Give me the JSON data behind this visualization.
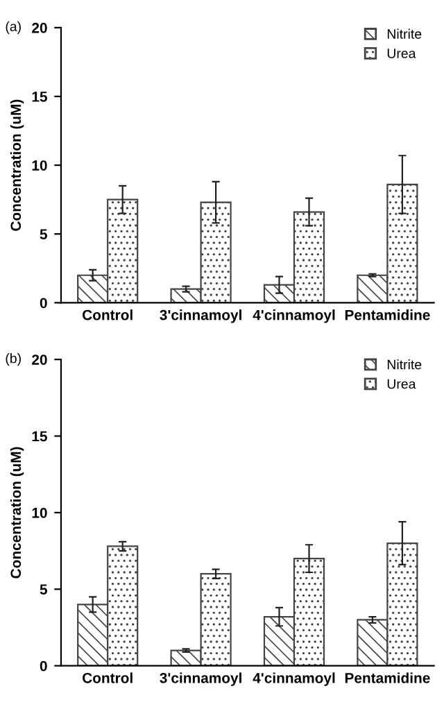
{
  "chart_data": [
    {
      "type": "bar",
      "annotations": [
        "(a)"
      ],
      "ylabel": "Concentration (uM)",
      "categories": [
        "Control",
        "3'cinnamoyl",
        "4'cinnamoyl",
        "Pentamidine"
      ],
      "series": [
        {
          "name": "Nitrite",
          "color": "#444444",
          "values": [
            2.0,
            1.0,
            1.3,
            2.0
          ],
          "errors": [
            0.4,
            0.2,
            0.6,
            0.1
          ]
        },
        {
          "name": "Urea",
          "color": "#444444",
          "values": [
            7.5,
            7.3,
            6.6,
            8.6
          ],
          "errors": [
            1.0,
            1.5,
            1.0,
            2.1
          ]
        }
      ],
      "ylim": [
        0,
        20
      ],
      "yticks": [
        0,
        5,
        10,
        15,
        20
      ],
      "legend": "top right",
      "grid": false
    },
    {
      "type": "bar",
      "annotations": [
        "(b)"
      ],
      "ylabel": "Concentration (uM)",
      "categories": [
        "Control",
        "3'cinnamoyl",
        "4'cinnamoyl",
        "Pentamidine"
      ],
      "series": [
        {
          "name": "Nitrite",
          "color": "#444444",
          "values": [
            4.0,
            1.0,
            3.2,
            3.0
          ],
          "errors": [
            0.5,
            0.1,
            0.6,
            0.2
          ]
        },
        {
          "name": "Urea",
          "color": "#444444",
          "values": [
            7.8,
            6.0,
            7.0,
            8.0
          ],
          "errors": [
            0.3,
            0.3,
            0.9,
            1.4
          ]
        }
      ],
      "ylim": [
        0,
        20
      ],
      "yticks": [
        0,
        5,
        10,
        15,
        20
      ],
      "legend": "top right",
      "grid": false
    }
  ]
}
